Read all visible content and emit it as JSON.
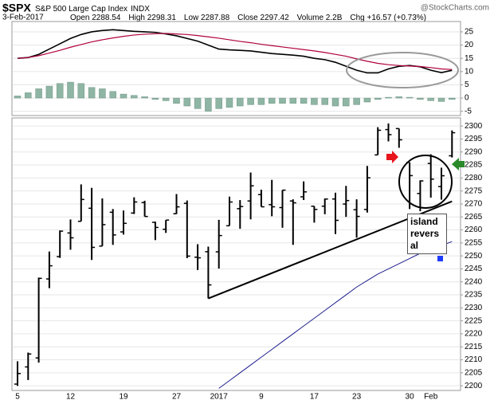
{
  "chart_data": [
    {
      "type": "macd",
      "ylim": [
        -6,
        28.6
      ],
      "yticks": [
        -5,
        0,
        5,
        10,
        15,
        20,
        25
      ],
      "grid": true,
      "series": [
        {
          "color": "#000000",
          "values": [
            15,
            15.3,
            16.5,
            18.5,
            20.5,
            22.5,
            24,
            25,
            25.5,
            25.8,
            25.5,
            25.2,
            25,
            24.8,
            24.2,
            23.5,
            22.5,
            21.5,
            20,
            18.5,
            18.2,
            18,
            17.8,
            17.3,
            16.8,
            16.5,
            16.2,
            15.8,
            15,
            14.5,
            13.5,
            12,
            10.5,
            9.5,
            9.5,
            11,
            12,
            12.3,
            11.8,
            10.5,
            9.6,
            10.5
          ]
        },
        {
          "color": "#b0003a",
          "values": [
            15,
            15.3,
            16,
            17,
            18,
            19.2,
            20.2,
            21.2,
            22,
            22.7,
            23.3,
            23.8,
            24.1,
            24.3,
            24.4,
            24.2,
            24,
            23.6,
            23.1,
            22.6,
            22,
            21.4,
            20.9,
            20.3,
            19.8,
            19.3,
            18.8,
            18.3,
            17.8,
            17.2,
            16.5,
            15.8,
            14.8,
            13.9,
            13.1,
            12.6,
            12.3,
            12.1,
            11.9,
            11.5,
            11,
            10.8
          ]
        }
      ],
      "histogram": {
        "color": "#8fb5a4",
        "values": [
          0.8,
          2,
          3.5,
          4.5,
          5.5,
          6,
          5.5,
          4,
          3.5,
          2.5,
          1.5,
          1,
          0.5,
          -0.5,
          -1,
          -2,
          -3,
          -4,
          -5,
          -4,
          -3.5,
          -3,
          -2.5,
          -2.5,
          -2,
          -2,
          -2,
          -2,
          -2.5,
          -2.5,
          -3,
          -3,
          -2.5,
          -1.5,
          -0.5,
          0.3,
          0.5,
          0.3,
          -0.5,
          -1,
          -1.3,
          -0.5
        ]
      }
    },
    {
      "type": "ohlc",
      "title": "$SPX",
      "subtitle": "S&P 500 Large Cap Index",
      "exchange": "INDX",
      "date": "3-Feb-2017",
      "quote": [
        "Open 2288.54",
        "High 2298.31",
        "Low 2287.88",
        "Close 2297.42",
        "Volume 2.2B",
        "Chg +16.57 (+0.73%)"
      ],
      "source": "@StockCharts.com",
      "annotation": "island reversal",
      "categories": [
        "5",
        null,
        null,
        null,
        null,
        "12",
        null,
        null,
        null,
        null,
        "19",
        null,
        null,
        null,
        null,
        "27",
        null,
        null,
        null,
        "2017",
        null,
        null,
        null,
        "9",
        null,
        null,
        null,
        null,
        "17",
        null,
        null,
        null,
        "23",
        null,
        null,
        null,
        null,
        "30",
        null,
        "Feb",
        null,
        null
      ],
      "ylim": [
        2198.2,
        2302.5
      ],
      "yticks": [
        2200,
        2205,
        2210,
        2215,
        2220,
        2225,
        2230,
        2235,
        2240,
        2245,
        2250,
        2255,
        2260,
        2265,
        2270,
        2275,
        2280,
        2285,
        2290,
        2295,
        2300
      ],
      "grid": true,
      "color": "#000000",
      "open": [
        2200.65,
        2207.26,
        2210.72,
        2241.13,
        2249.73,
        2258.83,
        2263.32,
        2268.35,
        2253.77,
        2266.81,
        2259.24,
        2266.5,
        2270.54,
        2262.93,
        2260.25,
        2266.23,
        2270.23,
        2249.5,
        2251.61,
        2251.57,
        2261.6,
        2268.18,
        2271.14,
        2273.59,
        2269.72,
        2268.6,
        2271.14,
        2272.74,
        2269.14,
        2269.14,
        2271.9,
        2269.96,
        2267.78,
        2267.88,
        2288.88,
        2298.63,
        2299.02,
        2286.01,
        2274.02,
        2285.59,
        2276.69,
        2288.54
      ],
      "high": [
        2209.42,
        2212.78,
        2241.63,
        2251.69,
        2259.8,
        2264.03,
        2277.53,
        2276.2,
        2272.12,
        2268.05,
        2267.47,
        2272.56,
        2271.23,
        2263.18,
        2263.79,
        2273.82,
        2271.31,
        2254.51,
        2253.58,
        2263.88,
        2272.82,
        2271.5,
        2282.1,
        2275.49,
        2279.27,
        2275.32,
        2271.78,
        2278.68,
        2269.14,
        2272.08,
        2274.33,
        2276.96,
        2271.78,
        2284.63,
        2299.55,
        2300.99,
        2299.02,
        2286.01,
        2279.09,
        2289.14,
        2283.97,
        2298.31
      ],
      "low": [
        2199.97,
        2202.21,
        2208.93,
        2237.57,
        2249.23,
        2252.37,
        2263.32,
        2248.44,
        2253.77,
        2254.24,
        2258.21,
        2266.14,
        2265.15,
        2256.08,
        2258.84,
        2266.15,
        2249.11,
        2244.56,
        2233.62,
        2245.13,
        2261.6,
        2260.45,
        2264.06,
        2268.9,
        2265.27,
        2260.83,
        2254.25,
        2271.51,
        2262.81,
        2266.04,
        2258.41,
        2265.01,
        2257.02,
        2266.68,
        2288.88,
        2294.08,
        2291.62,
        2268.04,
        2267.21,
        2272.44,
        2271.65,
        2287.88
      ],
      "close": [
        2204.71,
        2212.23,
        2241.35,
        2246.19,
        2259.53,
        2256.96,
        2271.72,
        2253.28,
        2262.03,
        2258.07,
        2262.53,
        2270.76,
        2265.18,
        2260.96,
        2263.79,
        2268.88,
        2249.92,
        2249.26,
        2238.83,
        2257.83,
        2270.75,
        2269,
        2276.98,
        2268.9,
        2268.9,
        2275.32,
        2270.44,
        2274.64,
        2267.89,
        2271.89,
        2263.69,
        2271.31,
        2265.2,
        2280.07,
        2298.37,
        2296.68,
        2294.69,
        2280.9,
        2278.87,
        2279.55,
        2280.85,
        2297.42
      ],
      "series": [
        {
          "color": "#1f1f8f",
          "values": [
            null,
            null,
            null,
            null,
            null,
            null,
            null,
            null,
            null,
            null,
            null,
            null,
            null,
            null,
            null,
            null,
            null,
            null,
            null,
            2199,
            2202,
            2205,
            2208,
            2211,
            2214,
            2217,
            2220,
            2223,
            2226,
            2229,
            2232,
            2235,
            2238,
            2240.5,
            2243,
            2245,
            2247,
            2249,
            2251,
            2252.5,
            2254,
            2255.5
          ]
        }
      ],
      "trendline": {
        "from": {
          "index": 18,
          "value": 2233.62
        },
        "to": {
          "index": 41,
          "value": 2271
        }
      }
    }
  ]
}
